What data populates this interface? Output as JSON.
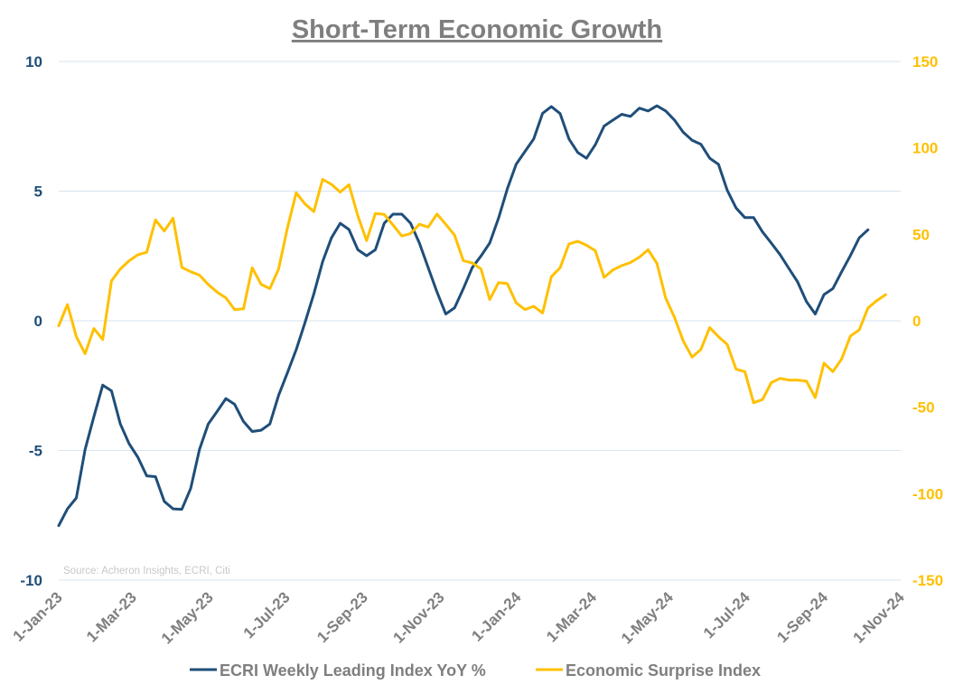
{
  "chart_data": {
    "type": "line",
    "title": "Short-Term Economic Growth",
    "source": "Source: Acheron Insights, ECRI, Citi",
    "x_start": "2023-01-01",
    "x_step_days": 7,
    "x_range": [
      "2023-01-01",
      "2024-11-01"
    ],
    "x_ticks": [
      "1-Jan-23",
      "1-Mar-23",
      "1-May-23",
      "1-Jul-23",
      "1-Sep-23",
      "1-Nov-23",
      "1-Jan-24",
      "1-Mar-24",
      "1-May-24",
      "1-Jul-24",
      "1-Sep-24",
      "1-Nov-24"
    ],
    "x_tick_dates": [
      "2023-01-01",
      "2023-03-01",
      "2023-05-01",
      "2023-07-01",
      "2023-09-01",
      "2023-11-01",
      "2024-01-01",
      "2024-03-01",
      "2024-05-01",
      "2024-07-01",
      "2024-09-01",
      "2024-11-01"
    ],
    "y_left": {
      "range": [
        -10,
        10
      ],
      "ticks": [
        "10",
        "5",
        "0",
        "-5",
        "-10"
      ],
      "tick_values": [
        10,
        5,
        0,
        -5,
        -10
      ]
    },
    "y_right": {
      "range": [
        -150,
        150
      ],
      "ticks": [
        "150",
        "100",
        "50",
        "0",
        "-50",
        "-100",
        "-150"
      ],
      "tick_values": [
        150,
        100,
        50,
        0,
        -50,
        -100,
        -150
      ]
    },
    "grid": true,
    "legend_position": "bottom",
    "series": [
      {
        "name": "ECRI Weekly Leading Index YoY %",
        "axis": "left",
        "color": "#1f4e79",
        "values": [
          -7.9,
          -7.25,
          -6.83,
          -4.96,
          -3.7,
          -2.48,
          -2.7,
          -3.98,
          -4.74,
          -5.26,
          -5.98,
          -6.01,
          -6.96,
          -7.25,
          -7.27,
          -6.46,
          -4.96,
          -3.98,
          -3.5,
          -3.0,
          -3.22,
          -3.88,
          -4.27,
          -4.22,
          -3.98,
          -2.87,
          -2.0,
          -1.11,
          -0.07,
          1.04,
          2.28,
          3.2,
          3.76,
          3.52,
          2.74,
          2.51,
          2.74,
          3.76,
          4.11,
          4.11,
          3.76,
          3.0,
          2.05,
          1.11,
          0.26,
          0.5,
          1.24,
          2.05,
          2.5,
          3.0,
          3.96,
          5.09,
          6.03,
          6.53,
          7.01,
          8.0,
          8.26,
          7.99,
          7.01,
          6.49,
          6.27,
          6.79,
          7.51,
          7.74,
          7.96,
          7.88,
          8.2,
          8.09,
          8.29,
          8.09,
          7.74,
          7.27,
          6.96,
          6.81,
          6.27,
          6.03,
          5.03,
          4.35,
          3.98,
          3.98,
          3.43,
          3.0,
          2.55,
          2.02,
          1.5,
          0.74,
          0.26,
          1.01,
          1.24,
          1.89,
          2.52,
          3.2,
          3.51
        ]
      },
      {
        "name": "Economic Surprise Index",
        "axis": "right",
        "color": "#ffc000",
        "values": [
          -2.9,
          9.4,
          -9.2,
          -19.0,
          -4.5,
          -10.8,
          23.1,
          30.0,
          34.7,
          38.2,
          39.6,
          58.4,
          51.9,
          59.3,
          30.9,
          28.4,
          26.4,
          21.0,
          16.6,
          13.3,
          6.5,
          6.9,
          30.7,
          21.1,
          18.6,
          30.0,
          53.8,
          74.0,
          67.6,
          63.2,
          81.8,
          78.9,
          74.4,
          78.7,
          60.7,
          46.4,
          62.1,
          61.5,
          55.4,
          49.0,
          50.5,
          55.8,
          54.2,
          61.7,
          55.8,
          49.5,
          34.7,
          33.5,
          30.0,
          12.3,
          22.1,
          21.5,
          10.4,
          6.5,
          8.4,
          4.5,
          25.5,
          30.7,
          44.4,
          46.0,
          43.7,
          40.5,
          25.1,
          29.4,
          31.9,
          33.7,
          36.8,
          41.1,
          33.3,
          13.1,
          2.0,
          -11.7,
          -21.0,
          -16.6,
          -3.9,
          -9.2,
          -13.7,
          -28.0,
          -29.4,
          -47.4,
          -45.6,
          -35.8,
          -33.3,
          -34.3,
          -34.3,
          -34.9,
          -44.4,
          -24.5,
          -29.4,
          -22.1,
          -8.8,
          -5.3,
          7.4,
          11.7,
          15.1
        ]
      }
    ]
  }
}
